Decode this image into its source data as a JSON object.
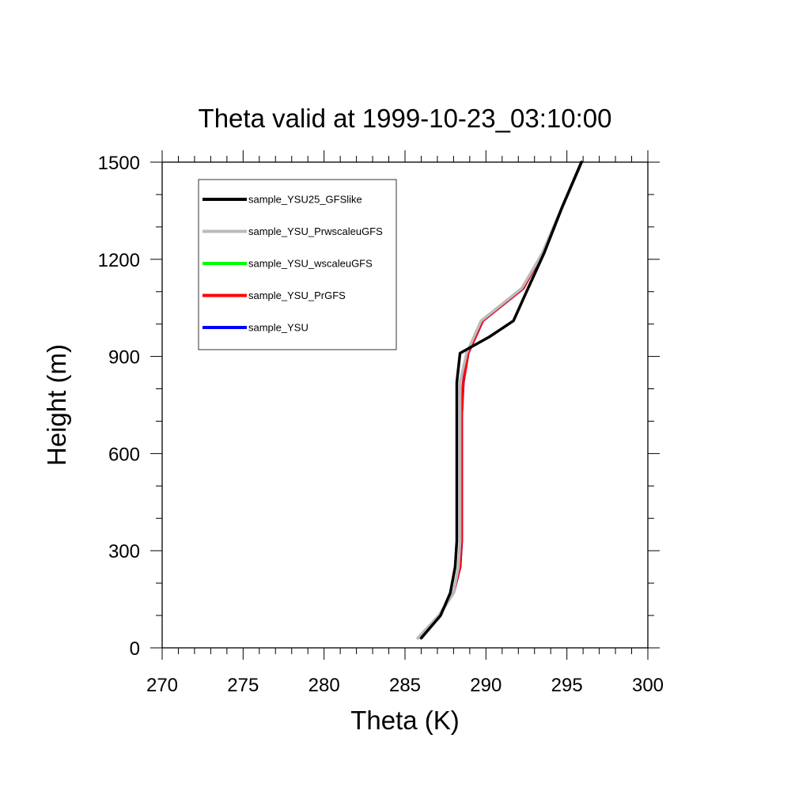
{
  "chart_data": {
    "type": "line",
    "title": "Theta valid at 1999-10-23_03:10:00",
    "xlabel": "Theta (K)",
    "ylabel": "Height (m)",
    "xlim": [
      270,
      300
    ],
    "ylim": [
      0,
      1500
    ],
    "xticks": [
      270,
      275,
      280,
      285,
      290,
      295,
      300
    ],
    "yticks": [
      0,
      300,
      600,
      900,
      1200,
      1500
    ],
    "x_minor_step": 1,
    "y_minor_step": 100,
    "grid": false,
    "legend_position": "top-left",
    "series": [
      {
        "name": "sample_YSU25_GFSlike",
        "color": "#000000",
        "points": [
          [
            286.0,
            30
          ],
          [
            287.2,
            100
          ],
          [
            287.8,
            170
          ],
          [
            288.1,
            250
          ],
          [
            288.2,
            330
          ],
          [
            288.2,
            450
          ],
          [
            288.2,
            600
          ],
          [
            288.2,
            720
          ],
          [
            288.2,
            820
          ],
          [
            288.4,
            910
          ],
          [
            290.2,
            960
          ],
          [
            291.7,
            1010
          ],
          [
            292.6,
            1110
          ],
          [
            293.6,
            1220
          ],
          [
            294.7,
            1360
          ],
          [
            295.9,
            1500
          ]
        ]
      },
      {
        "name": "sample_YSU_PrwscaleuGFS",
        "color": "#bbbbbb",
        "points": [
          [
            285.8,
            30
          ],
          [
            287.1,
            100
          ],
          [
            288.0,
            170
          ],
          [
            288.3,
            250
          ],
          [
            288.4,
            330
          ],
          [
            288.4,
            450
          ],
          [
            288.4,
            600
          ],
          [
            288.4,
            720
          ],
          [
            288.4,
            820
          ],
          [
            288.8,
            910
          ],
          [
            289.7,
            1010
          ],
          [
            292.2,
            1110
          ],
          [
            293.5,
            1220
          ],
          [
            294.7,
            1360
          ],
          [
            295.9,
            1500
          ]
        ]
      },
      {
        "name": "sample_YSU_wscaleuGFS",
        "color": "#00ff00",
        "points": [
          [
            285.8,
            30
          ],
          [
            287.1,
            100
          ],
          [
            288.0,
            170
          ],
          [
            288.3,
            250
          ],
          [
            288.4,
            330
          ],
          [
            288.4,
            450
          ],
          [
            288.4,
            600
          ],
          [
            288.4,
            720
          ],
          [
            288.4,
            820
          ],
          [
            288.8,
            910
          ],
          [
            289.7,
            1010
          ],
          [
            292.2,
            1110
          ],
          [
            293.5,
            1220
          ],
          [
            294.7,
            1360
          ],
          [
            295.9,
            1500
          ]
        ]
      },
      {
        "name": "sample_YSU_PrGFS",
        "color": "#ff0000",
        "points": [
          [
            285.8,
            30
          ],
          [
            287.1,
            100
          ],
          [
            288.0,
            170
          ],
          [
            288.4,
            250
          ],
          [
            288.5,
            330
          ],
          [
            288.5,
            450
          ],
          [
            288.5,
            600
          ],
          [
            288.5,
            720
          ],
          [
            288.6,
            820
          ],
          [
            288.9,
            910
          ],
          [
            289.8,
            1010
          ],
          [
            292.3,
            1110
          ],
          [
            293.5,
            1220
          ],
          [
            294.7,
            1360
          ],
          [
            295.9,
            1500
          ]
        ]
      },
      {
        "name": "sample_YSU",
        "color": "#0000ff",
        "points": [
          [
            285.8,
            30
          ],
          [
            287.1,
            100
          ],
          [
            288.0,
            170
          ],
          [
            288.4,
            250
          ],
          [
            288.5,
            330
          ],
          [
            288.5,
            450
          ],
          [
            288.5,
            600
          ],
          [
            288.5,
            720
          ],
          [
            288.6,
            820
          ],
          [
            288.9,
            910
          ],
          [
            289.8,
            1010
          ],
          [
            292.3,
            1110
          ],
          [
            293.5,
            1220
          ],
          [
            294.7,
            1360
          ],
          [
            295.9,
            1500
          ]
        ]
      }
    ]
  }
}
